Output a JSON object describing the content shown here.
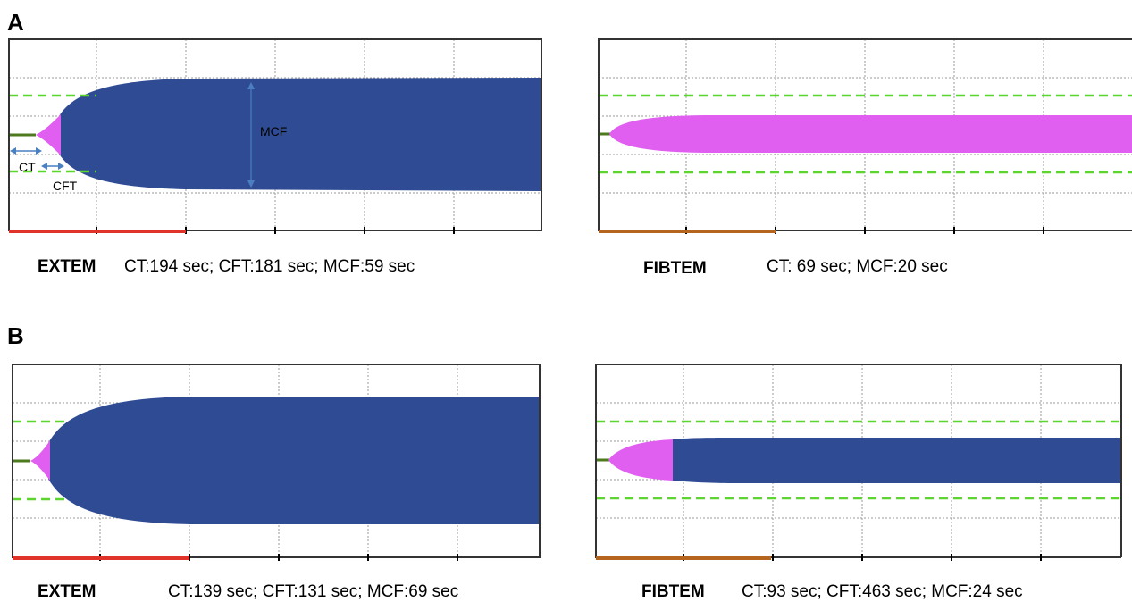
{
  "sections": [
    {
      "label": "A",
      "panels": [
        {
          "assay": "EXTEM",
          "results": "CT:194 sec; CFT:181 sec; MCF:59 sec",
          "annotations": {
            "ct": "CT",
            "cft": "CFT",
            "mcf": "MCF"
          }
        },
        {
          "assay": "FIBTEM",
          "results": "CT: 69 sec; MCF:20 sec"
        }
      ]
    },
    {
      "label": "B",
      "panels": [
        {
          "assay": "EXTEM",
          "results": "CT:139 sec; CFT:131 sec; MCF:69 sec"
        },
        {
          "assay": "FIBTEM",
          "results": "CT:93 sec; CFT:463 sec; MCF:24 sec"
        }
      ]
    }
  ],
  "colors": {
    "clot_amplitude": "#2f4b94",
    "clotting_phase": "#e05ff0",
    "reference_line": "#5cd62e",
    "baseline": "#4e7a1e",
    "annotation_arrow": "#4a7fc1",
    "grid": "#9a9a9a",
    "runtime_bar_extem": "#e0342a",
    "runtime_bar_fibtem": "#b5651d"
  }
}
